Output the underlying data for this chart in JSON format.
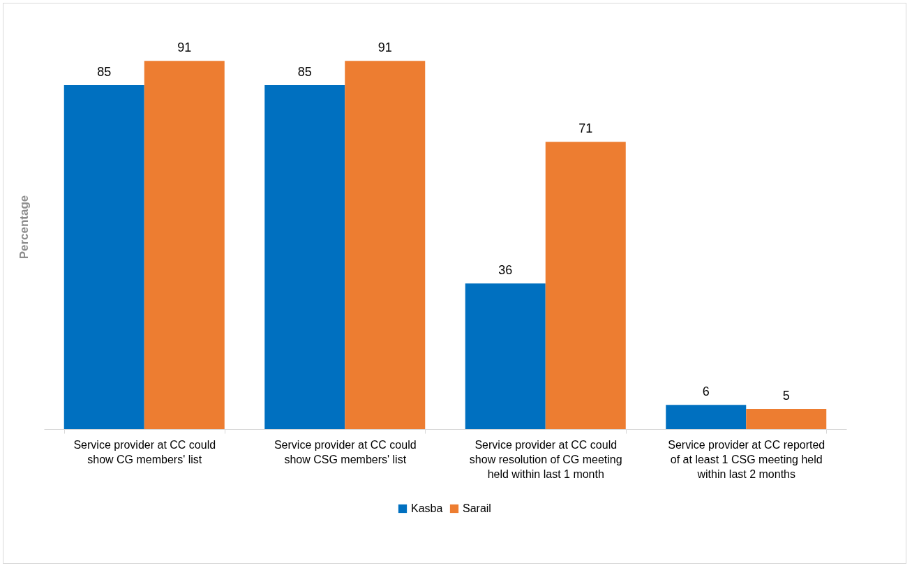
{
  "chart_data": {
    "type": "bar",
    "ylabel": "Percentage",
    "categories": [
      "Service provider at CC could show CG members' list",
      "Service provider at CC could show CSG members' list",
      "Service provider at CC could show resolution of CG meeting held within last 1 month",
      "Service provider at CC reported of at least 1 CSG meeting held within last 2 months"
    ],
    "series": [
      {
        "name": "Kasba",
        "color": "#0070c0",
        "values": [
          85,
          85,
          36,
          6
        ]
      },
      {
        "name": "Sarail",
        "color": "#ed7d31",
        "values": [
          91,
          91,
          71,
          5
        ]
      }
    ],
    "data_labels": true,
    "legend": "bottom",
    "grid": false
  }
}
